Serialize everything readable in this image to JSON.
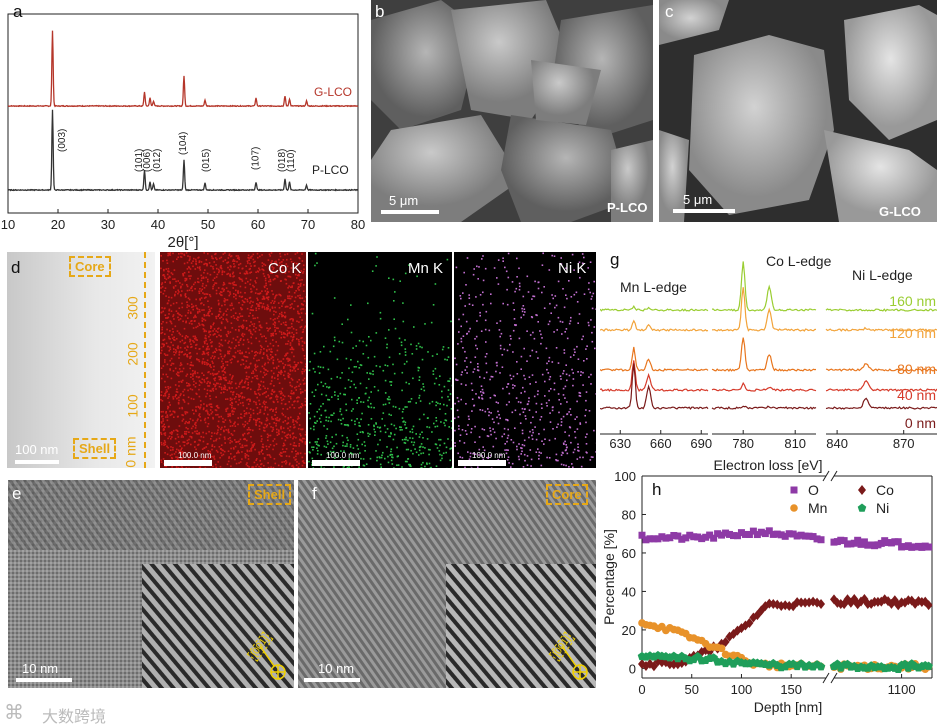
{
  "panels": {
    "a": "a",
    "b": "b",
    "c": "c",
    "d": "d",
    "e": "e",
    "f": "f",
    "g": "g",
    "h": "h"
  },
  "panel_b": {
    "scale": "5 μm",
    "label": "P-LCO"
  },
  "panel_c": {
    "scale": "5 μm",
    "label": "G-LCO"
  },
  "panel_d": {
    "core": "Core",
    "shell": "Shell",
    "scale": "100 nm",
    "depth_ticks": [
      "0 nm",
      "100",
      "200",
      "300"
    ],
    "maps": [
      {
        "label": "Co K",
        "scale": "100.0 nm",
        "color": "#d41e1e"
      },
      {
        "label": "Mn K",
        "scale": "100.0 nm",
        "color": "#2fbf4a"
      },
      {
        "label": "Ni K",
        "scale": "100.0 nm",
        "color": "#c26fd0"
      }
    ]
  },
  "panel_e": {
    "tag": "Shell",
    "scale": "10 nm",
    "zone": "[001]"
  },
  "panel_f": {
    "tag": "Core",
    "scale": "10 nm",
    "zone": "[001]"
  },
  "watermark": "大数跨境",
  "chart_data": [
    {
      "id": "a",
      "type": "line",
      "xlabel": "2θ[°]",
      "xticks": [
        "10",
        "20",
        "30",
        "40",
        "50",
        "60",
        "70",
        "80"
      ],
      "xlim": [
        10,
        80
      ],
      "series": [
        {
          "name": "G-LCO",
          "color": "#b5362a",
          "peaks": [
            [
              18.9,
              75
            ],
            [
              37.3,
              14
            ],
            [
              38.4,
              8
            ],
            [
              39.1,
              5
            ],
            [
              45.2,
              30
            ],
            [
              49.4,
              6
            ],
            [
              59.6,
              8
            ],
            [
              65.4,
              10
            ],
            [
              66.3,
              7
            ],
            [
              69.7,
              5
            ]
          ]
        },
        {
          "name": "P-LCO",
          "color": "#333333",
          "peaks": [
            [
              18.9,
              80
            ],
            [
              37.3,
              20
            ],
            [
              38.4,
              8
            ],
            [
              39.1,
              6
            ],
            [
              45.2,
              30
            ],
            [
              49.4,
              7
            ],
            [
              59.6,
              8
            ],
            [
              65.4,
              11
            ],
            [
              66.3,
              8
            ],
            [
              69.7,
              5
            ]
          ]
        }
      ],
      "annotations": [
        {
          "x": 20.8,
          "text": "(003)"
        },
        {
          "x": 36.2,
          "text": "(101)"
        },
        {
          "x": 37.8,
          "text": "(006)"
        },
        {
          "x": 39.8,
          "text": "(012)"
        },
        {
          "x": 45.0,
          "text": "(104)"
        },
        {
          "x": 49.6,
          "text": "(015)"
        },
        {
          "x": 59.5,
          "text": "(107)"
        },
        {
          "x": 64.8,
          "text": "(018)"
        },
        {
          "x": 66.6,
          "text": "(110)"
        }
      ]
    },
    {
      "id": "g",
      "type": "line",
      "xlabel": "Electron loss [eV]",
      "groups": [
        {
          "title": "Mn L-edge",
          "ticks": [
            "630",
            "660",
            "690"
          ],
          "xlim": [
            615,
            695
          ]
        },
        {
          "title": "Co L-edge",
          "ticks": [
            "780",
            "810"
          ],
          "xlim": [
            762,
            822
          ]
        },
        {
          "title": "Ni L-edge",
          "ticks": [
            "840",
            "870"
          ],
          "xlim": [
            835,
            885
          ]
        }
      ],
      "series": [
        {
          "name": "160 nm",
          "color": "#9acd32"
        },
        {
          "name": "120 nm",
          "color": "#f2a33a"
        },
        {
          "name": "80 nm",
          "color": "#e8761e"
        },
        {
          "name": "40 nm",
          "color": "#d63a2a"
        },
        {
          "name": "0 nm",
          "color": "#7a1a1a"
        }
      ]
    },
    {
      "id": "h",
      "type": "scatter",
      "xlabel": "Depth [nm]",
      "ylabel": "Percentage [%]",
      "ylim": [
        -5,
        100
      ],
      "yticks": [
        "0",
        "20",
        "40",
        "60",
        "80",
        "100"
      ],
      "xticks_left": [
        "0",
        "50",
        "100",
        "150"
      ],
      "xticks_right": [
        "1100"
      ],
      "x_break": true,
      "series": [
        {
          "name": "O",
          "color": "#8e3aa6",
          "marker": "square"
        },
        {
          "name": "Co",
          "color": "#7a1a1a",
          "marker": "diamond"
        },
        {
          "name": "Mn",
          "color": "#e8922a",
          "marker": "circle"
        },
        {
          "name": "Ni",
          "color": "#1f9e5a",
          "marker": "pentagon"
        }
      ],
      "data": {
        "O": {
          "left": [
            [
              0,
              68
            ],
            [
              60,
              68
            ],
            [
              120,
              71
            ],
            [
              180,
              67
            ]
          ],
          "right": [
            [
              1000,
              66
            ],
            [
              1140,
              64
            ]
          ]
        },
        "Co": {
          "left": [
            [
              0,
              2
            ],
            [
              40,
              3
            ],
            [
              80,
              12
            ],
            [
              110,
              25
            ],
            [
              125,
              33
            ],
            [
              180,
              34
            ]
          ],
          "right": [
            [
              1000,
              35
            ],
            [
              1140,
              34
            ]
          ]
        },
        "Mn": {
          "left": [
            [
              0,
              24
            ],
            [
              30,
              20
            ],
            [
              60,
              14
            ],
            [
              90,
              7
            ],
            [
              115,
              2
            ],
            [
              180,
              1
            ]
          ],
          "right": [
            [
              1000,
              1
            ],
            [
              1140,
              1
            ]
          ]
        },
        "Ni": {
          "left": [
            [
              0,
              6
            ],
            [
              60,
              5
            ],
            [
              120,
              2
            ],
            [
              180,
              1
            ]
          ],
          "right": [
            [
              1000,
              1
            ],
            [
              1140,
              1
            ]
          ]
        }
      }
    }
  ]
}
